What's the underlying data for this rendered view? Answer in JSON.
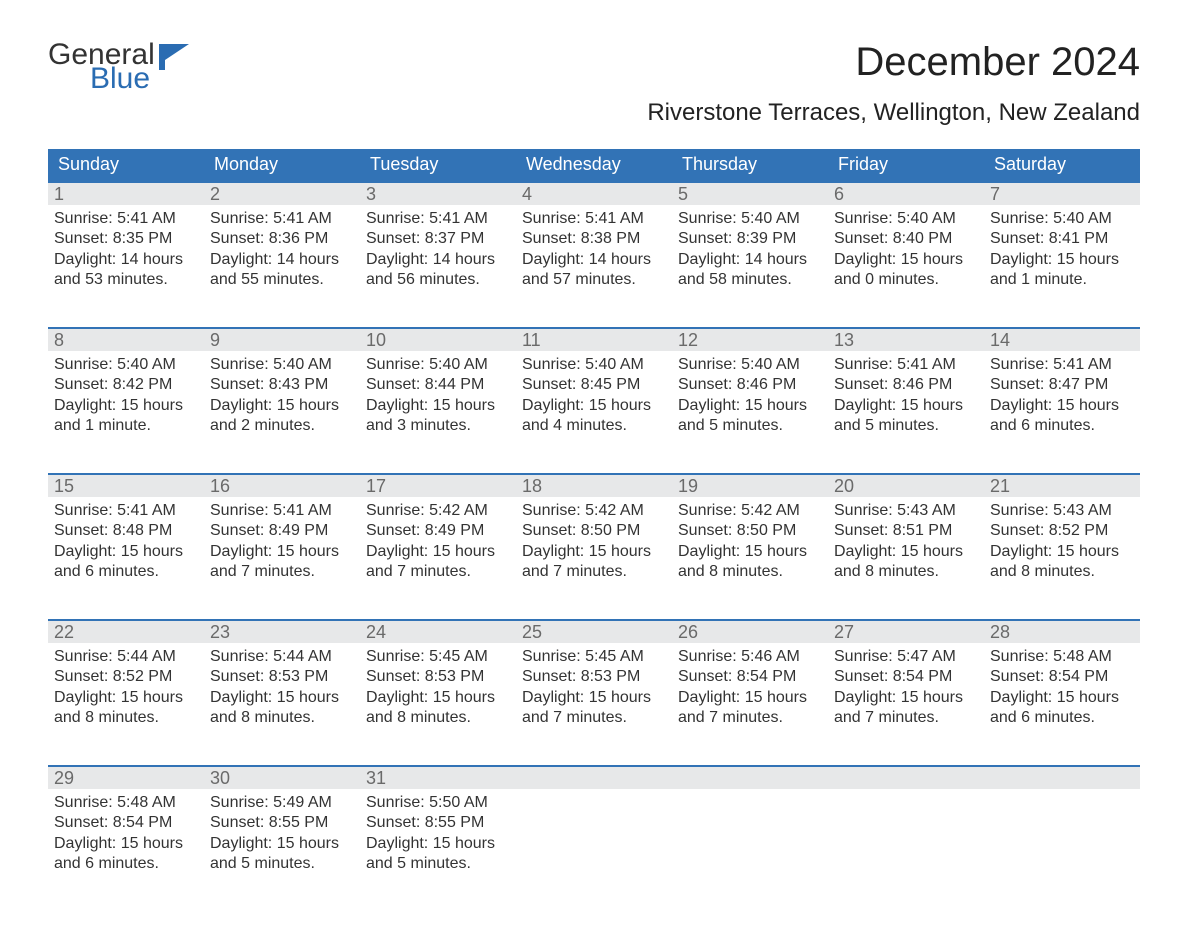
{
  "brand": {
    "word1": "General",
    "word2": "Blue",
    "flag_color": "#2a6cb2"
  },
  "title": "December 2024",
  "location": "Riverstone Terraces, Wellington, New Zealand",
  "colors": {
    "header_bg": "#3273b6",
    "header_text": "#ffffff",
    "daynum_bg": "#e7e8e9",
    "daynum_text": "#6a6a6a",
    "body_text": "#333333",
    "week_divider": "#3273b6",
    "page_bg": "#ffffff"
  },
  "day_headers": [
    "Sunday",
    "Monday",
    "Tuesday",
    "Wednesday",
    "Thursday",
    "Friday",
    "Saturday"
  ],
  "labels": {
    "sunrise": "Sunrise:",
    "sunset": "Sunset:",
    "daylight": "Daylight:"
  },
  "weeks": [
    [
      {
        "n": "1",
        "sr": "5:41 AM",
        "ss": "8:35 PM",
        "dl1": "14 hours",
        "dl2": "and 53 minutes."
      },
      {
        "n": "2",
        "sr": "5:41 AM",
        "ss": "8:36 PM",
        "dl1": "14 hours",
        "dl2": "and 55 minutes."
      },
      {
        "n": "3",
        "sr": "5:41 AM",
        "ss": "8:37 PM",
        "dl1": "14 hours",
        "dl2": "and 56 minutes."
      },
      {
        "n": "4",
        "sr": "5:41 AM",
        "ss": "8:38 PM",
        "dl1": "14 hours",
        "dl2": "and 57 minutes."
      },
      {
        "n": "5",
        "sr": "5:40 AM",
        "ss": "8:39 PM",
        "dl1": "14 hours",
        "dl2": "and 58 minutes."
      },
      {
        "n": "6",
        "sr": "5:40 AM",
        "ss": "8:40 PM",
        "dl1": "15 hours",
        "dl2": "and 0 minutes."
      },
      {
        "n": "7",
        "sr": "5:40 AM",
        "ss": "8:41 PM",
        "dl1": "15 hours",
        "dl2": "and 1 minute."
      }
    ],
    [
      {
        "n": "8",
        "sr": "5:40 AM",
        "ss": "8:42 PM",
        "dl1": "15 hours",
        "dl2": "and 1 minute."
      },
      {
        "n": "9",
        "sr": "5:40 AM",
        "ss": "8:43 PM",
        "dl1": "15 hours",
        "dl2": "and 2 minutes."
      },
      {
        "n": "10",
        "sr": "5:40 AM",
        "ss": "8:44 PM",
        "dl1": "15 hours",
        "dl2": "and 3 minutes."
      },
      {
        "n": "11",
        "sr": "5:40 AM",
        "ss": "8:45 PM",
        "dl1": "15 hours",
        "dl2": "and 4 minutes."
      },
      {
        "n": "12",
        "sr": "5:40 AM",
        "ss": "8:46 PM",
        "dl1": "15 hours",
        "dl2": "and 5 minutes."
      },
      {
        "n": "13",
        "sr": "5:41 AM",
        "ss": "8:46 PM",
        "dl1": "15 hours",
        "dl2": "and 5 minutes."
      },
      {
        "n": "14",
        "sr": "5:41 AM",
        "ss": "8:47 PM",
        "dl1": "15 hours",
        "dl2": "and 6 minutes."
      }
    ],
    [
      {
        "n": "15",
        "sr": "5:41 AM",
        "ss": "8:48 PM",
        "dl1": "15 hours",
        "dl2": "and 6 minutes."
      },
      {
        "n": "16",
        "sr": "5:41 AM",
        "ss": "8:49 PM",
        "dl1": "15 hours",
        "dl2": "and 7 minutes."
      },
      {
        "n": "17",
        "sr": "5:42 AM",
        "ss": "8:49 PM",
        "dl1": "15 hours",
        "dl2": "and 7 minutes."
      },
      {
        "n": "18",
        "sr": "5:42 AM",
        "ss": "8:50 PM",
        "dl1": "15 hours",
        "dl2": "and 7 minutes."
      },
      {
        "n": "19",
        "sr": "5:42 AM",
        "ss": "8:50 PM",
        "dl1": "15 hours",
        "dl2": "and 8 minutes."
      },
      {
        "n": "20",
        "sr": "5:43 AM",
        "ss": "8:51 PM",
        "dl1": "15 hours",
        "dl2": "and 8 minutes."
      },
      {
        "n": "21",
        "sr": "5:43 AM",
        "ss": "8:52 PM",
        "dl1": "15 hours",
        "dl2": "and 8 minutes."
      }
    ],
    [
      {
        "n": "22",
        "sr": "5:44 AM",
        "ss": "8:52 PM",
        "dl1": "15 hours",
        "dl2": "and 8 minutes."
      },
      {
        "n": "23",
        "sr": "5:44 AM",
        "ss": "8:53 PM",
        "dl1": "15 hours",
        "dl2": "and 8 minutes."
      },
      {
        "n": "24",
        "sr": "5:45 AM",
        "ss": "8:53 PM",
        "dl1": "15 hours",
        "dl2": "and 8 minutes."
      },
      {
        "n": "25",
        "sr": "5:45 AM",
        "ss": "8:53 PM",
        "dl1": "15 hours",
        "dl2": "and 7 minutes."
      },
      {
        "n": "26",
        "sr": "5:46 AM",
        "ss": "8:54 PM",
        "dl1": "15 hours",
        "dl2": "and 7 minutes."
      },
      {
        "n": "27",
        "sr": "5:47 AM",
        "ss": "8:54 PM",
        "dl1": "15 hours",
        "dl2": "and 7 minutes."
      },
      {
        "n": "28",
        "sr": "5:48 AM",
        "ss": "8:54 PM",
        "dl1": "15 hours",
        "dl2": "and 6 minutes."
      }
    ],
    [
      {
        "n": "29",
        "sr": "5:48 AM",
        "ss": "8:54 PM",
        "dl1": "15 hours",
        "dl2": "and 6 minutes."
      },
      {
        "n": "30",
        "sr": "5:49 AM",
        "ss": "8:55 PM",
        "dl1": "15 hours",
        "dl2": "and 5 minutes."
      },
      {
        "n": "31",
        "sr": "5:50 AM",
        "ss": "8:55 PM",
        "dl1": "15 hours",
        "dl2": "and 5 minutes."
      },
      null,
      null,
      null,
      null
    ]
  ]
}
